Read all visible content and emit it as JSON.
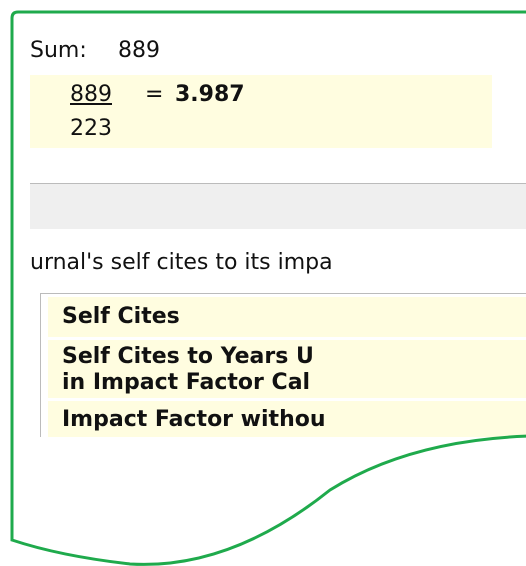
{
  "calculation": {
    "sum_label": "Sum:",
    "sum_value": "889",
    "numerator": "889",
    "denominator": "223",
    "equals": "=",
    "result": "3.987"
  },
  "description": "urnal's self cites to its impa",
  "table": {
    "rows": [
      [
        "Self Cites"
      ],
      [
        "Self Cites to Years U",
        "in Impact Factor Cal"
      ],
      [
        "Impact Factor withou"
      ]
    ]
  }
}
